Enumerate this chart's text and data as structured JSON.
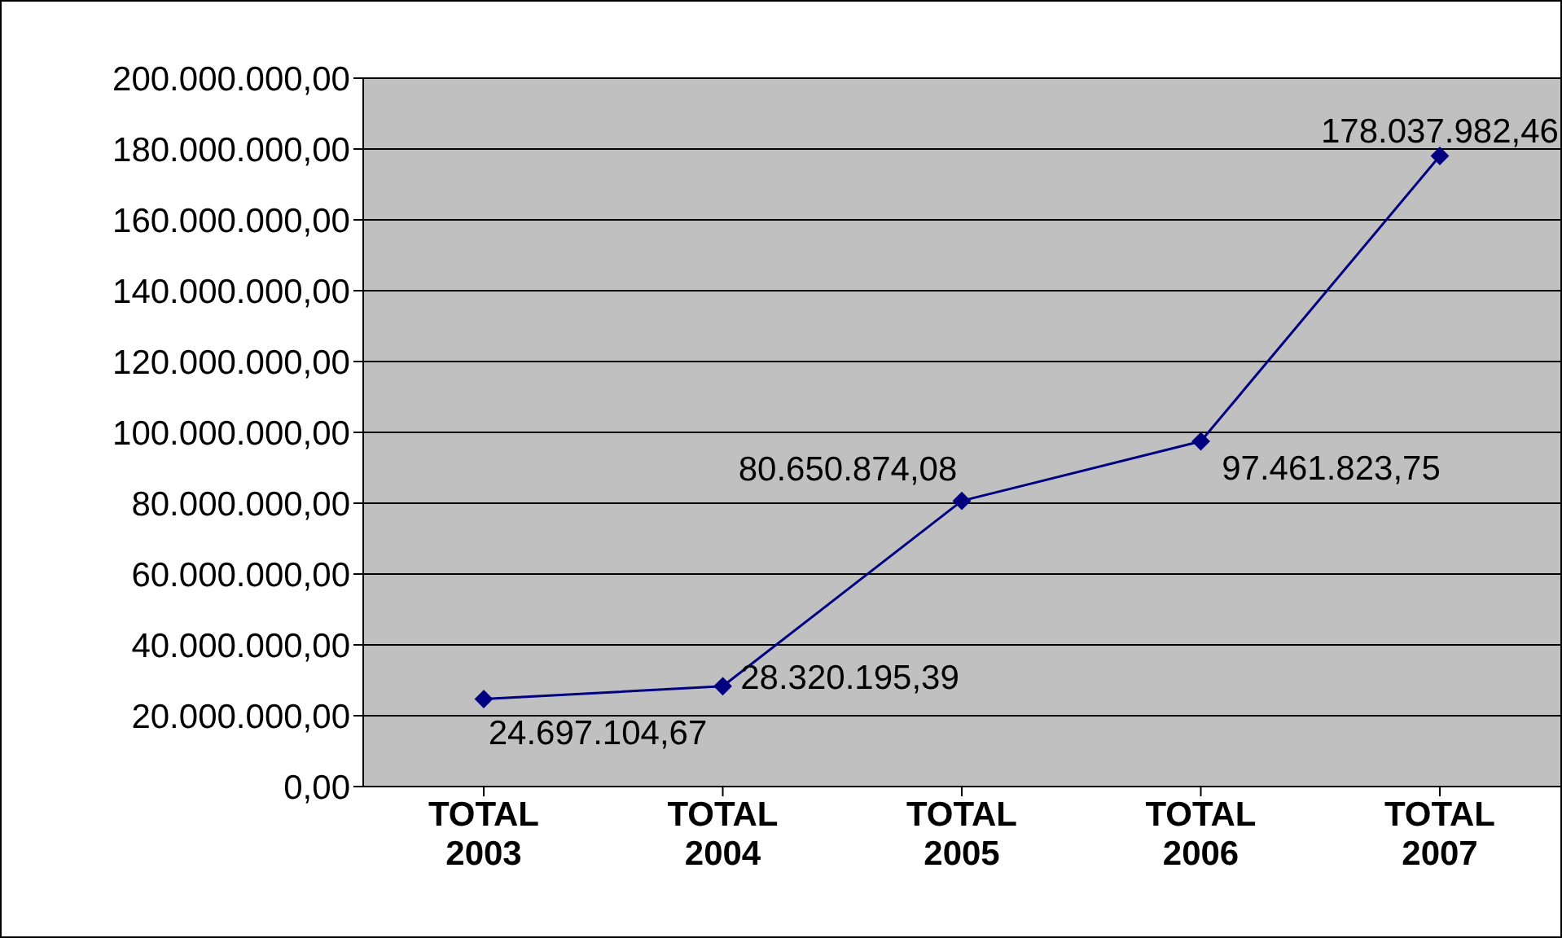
{
  "chart_data": {
    "type": "line",
    "categories": [
      "TOTAL 2003",
      "TOTAL 2004",
      "TOTAL 2005",
      "TOTAL 2006",
      "TOTAL 2007"
    ],
    "series": [
      {
        "color": "#000080",
        "values": [
          24697104.67,
          28320195.39,
          80650874.08,
          97461823.75,
          178037982.46
        ],
        "value_labels": [
          "24.697.104,67",
          "28.320.195,39",
          "80.650.874,08",
          "97.461.823,75",
          "178.037.982,46"
        ]
      }
    ],
    "ylim": [
      0,
      200000000
    ],
    "yticks": [
      {
        "value": 0,
        "label": "0,00"
      },
      {
        "value": 20000000,
        "label": "20.000.000,00"
      },
      {
        "value": 40000000,
        "label": "40.000.000,00"
      },
      {
        "value": 60000000,
        "label": "60.000.000,00"
      },
      {
        "value": 80000000,
        "label": "80.000.000,00"
      },
      {
        "value": 100000000,
        "label": "100.000.000,00"
      },
      {
        "value": 120000000,
        "label": "120.000.000,00"
      },
      {
        "value": 140000000,
        "label": "140.000.000,00"
      },
      {
        "value": 160000000,
        "label": "160.000.000,00"
      },
      {
        "value": 180000000,
        "label": "180.000.000,00"
      },
      {
        "value": 200000000,
        "label": "200.000.000,00"
      }
    ],
    "grid": "y",
    "marker": "diamond",
    "line_style": "solid"
  }
}
